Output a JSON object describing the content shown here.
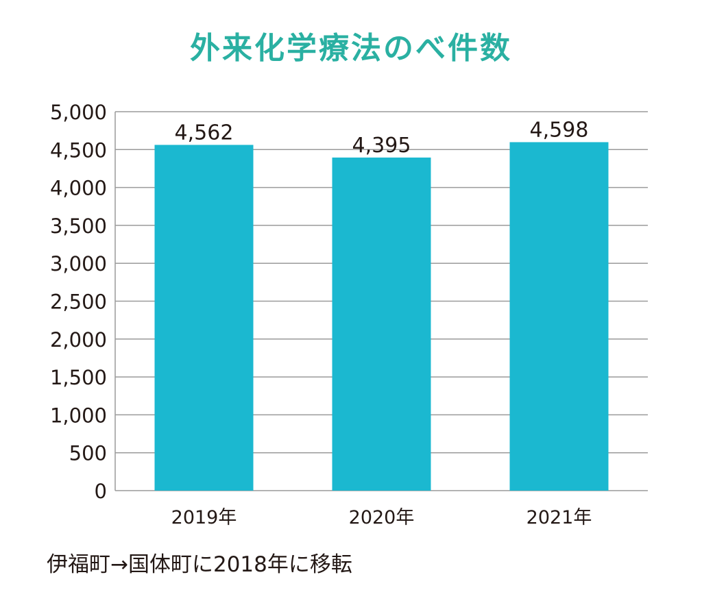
{
  "title": "外来化学療法のべ件数",
  "note": "伊福町→国体町に2018年に移転",
  "colors": {
    "title": "#2ab0a2",
    "bar": "#1bb8d0",
    "grid": "#9a9a9a",
    "text": "#231815"
  },
  "chart_data": {
    "type": "bar",
    "title": "外来化学療法のべ件数",
    "categories": [
      "2019年",
      "2020年",
      "2021年"
    ],
    "values": [
      4562,
      4395,
      4598
    ],
    "value_labels": [
      "4,562",
      "4,395",
      "4,598"
    ],
    "xlabel": "",
    "ylabel": "",
    "ylim": [
      0,
      5000
    ],
    "yticks": [
      0,
      500,
      1000,
      1500,
      2000,
      2500,
      3000,
      3500,
      4000,
      4500,
      5000
    ],
    "ytick_labels": [
      "0",
      "500",
      "1,000",
      "1,500",
      "2,000",
      "2,500",
      "3,000",
      "3,500",
      "4,000",
      "4,500",
      "5,000"
    ],
    "grid": true,
    "legend": "none"
  }
}
